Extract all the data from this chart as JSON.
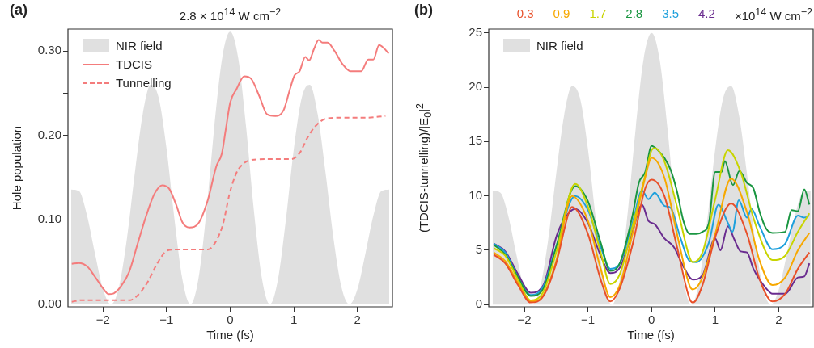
{
  "chart_data": [
    {
      "type": "line",
      "title": "2.8 × 10$^{14}$ W cm$^{−2}$",
      "xlabel": "Time (fs)",
      "ylabel": "Hole population",
      "annotations": [
        "(a)"
      ],
      "xlim": [
        -2.55,
        2.55
      ],
      "ylim": [
        -0.003,
        0.326
      ],
      "xticks": [
        -2,
        -1,
        0,
        1,
        2
      ],
      "yticks": [
        {
          "value": 0,
          "label": "0.00"
        },
        {
          "value": 0.05,
          "label": null
        },
        {
          "value": 0.1,
          "label": "0.10"
        },
        {
          "value": 0.15,
          "label": null
        },
        {
          "value": 0.2,
          "label": "0.20"
        },
        {
          "value": 0.25,
          "label": null
        },
        {
          "value": 0.3,
          "label": "0.30"
        }
      ],
      "grid": false,
      "legend": "top left",
      "marker": "none",
      "series": [
        {
          "name": "NIR field",
          "type": "area",
          "color": "#e0e0e0",
          "x": [
            -2.5,
            -2.375,
            -2.25,
            -2.125,
            -2,
            -1.875,
            -1.75,
            -1.625,
            -1.5,
            -1.375,
            -1.25,
            -1.125,
            -1,
            -0.875,
            -0.75,
            -0.625,
            -0.5,
            -0.375,
            -0.25,
            -0.125,
            0,
            0.125,
            0.25,
            0.375,
            0.5,
            0.625,
            0.75,
            0.875,
            1,
            1.125,
            1.25,
            1.375,
            1.5,
            1.625,
            1.75,
            1.875,
            2,
            2.125,
            2.25,
            2.375,
            2.5
          ],
          "values": [
            0.136,
            0.134,
            0.105,
            0.06,
            0.018,
            0,
            0.02,
            0.077,
            0.155,
            0.225,
            0.26,
            0.245,
            0.184,
            0.1,
            0.029,
            0,
            0.03,
            0.109,
            0.21,
            0.292,
            0.323,
            0.292,
            0.21,
            0.109,
            0.03,
            0,
            0.029,
            0.1,
            0.184,
            0.245,
            0.26,
            0.225,
            0.155,
            0.077,
            0.02,
            0,
            0.018,
            0.06,
            0.105,
            0.134,
            0.136
          ]
        },
        {
          "name": "TDCIS",
          "color": "#f47c7c",
          "line_style": "solid",
          "x": [
            -2.49,
            -2.38,
            -2.25,
            -2.12,
            -2,
            -1.91,
            -1.83,
            -1.72,
            -1.59,
            -1.45,
            -1.32,
            -1.19,
            -1.07,
            -0.96,
            -0.85,
            -0.75,
            -0.64,
            -0.49,
            -0.35,
            -0.22,
            -0.13,
            -0.07,
            0,
            0.1,
            0.22,
            0.33,
            0.46,
            0.58,
            0.71,
            0.84,
            0.94,
            1.01,
            1.09,
            1.18,
            1.24,
            1.32,
            1.39,
            1.45,
            1.53,
            1.64,
            1.77,
            1.89,
            2.06,
            2.17,
            2.25,
            2.34,
            2.42,
            2.49
          ],
          "values": [
            0.048,
            0.049,
            0.045,
            0.032,
            0.019,
            0.012,
            0.013,
            0.021,
            0.038,
            0.073,
            0.105,
            0.131,
            0.141,
            0.137,
            0.118,
            0.097,
            0.091,
            0.097,
            0.124,
            0.163,
            0.179,
            0.207,
            0.239,
            0.255,
            0.27,
            0.267,
            0.246,
            0.225,
            0.223,
            0.23,
            0.255,
            0.271,
            0.276,
            0.293,
            0.289,
            0.303,
            0.313,
            0.31,
            0.31,
            0.3,
            0.284,
            0.276,
            0.276,
            0.29,
            0.29,
            0.307,
            0.303,
            0.297
          ]
        },
        {
          "name": "Tunnelling",
          "color": "#f47c7c",
          "line_style": "dashed",
          "x": [
            -2.49,
            -2.33,
            -2.12,
            -1.83,
            -1.57,
            -1.45,
            -1.3,
            -1.15,
            -0.98,
            -0.81,
            -0.56,
            -0.35,
            -0.22,
            -0.11,
            -0.01,
            0.1,
            0.2,
            0.33,
            0.63,
            0.96,
            1.09,
            1.22,
            1.34,
            1.51,
            1.73,
            2.11,
            2.44
          ],
          "values": [
            0.003,
            0.005,
            0.005,
            0.005,
            0.005,
            0.011,
            0.026,
            0.048,
            0.064,
            0.065,
            0.065,
            0.065,
            0.075,
            0.096,
            0.131,
            0.156,
            0.166,
            0.171,
            0.172,
            0.172,
            0.179,
            0.198,
            0.211,
            0.22,
            0.221,
            0.221,
            0.223
          ]
        }
      ]
    },
    {
      "type": "line",
      "legend_title": "×10$^{14}$ W cm$^{−2}$",
      "xlabel": "Time (fs)",
      "ylabel": "(TDCIS-tunnelling)/|E$_{0}$|$^{2}$",
      "annotations": [
        "(b)"
      ],
      "xlim": [
        -2.56,
        2.54
      ],
      "ylim": [
        -0.2,
        25.35
      ],
      "xticks": [
        -2,
        -1,
        0,
        1,
        2
      ],
      "yticks": [
        0,
        5,
        10,
        15,
        20,
        25
      ],
      "grid": false,
      "legend": "top left",
      "marker": "none",
      "line_style": "solid",
      "series": [
        {
          "name": "NIR field",
          "type": "area",
          "color": "#e0e0e0",
          "x": [
            -2.5,
            -2.375,
            -2.25,
            -2.125,
            -2,
            -1.875,
            -1.75,
            -1.625,
            -1.5,
            -1.375,
            -1.25,
            -1.125,
            -1,
            -0.875,
            -0.75,
            -0.625,
            -0.5,
            -0.375,
            -0.25,
            -0.125,
            0,
            0.125,
            0.25,
            0.375,
            0.5,
            0.625,
            0.75,
            0.875,
            1,
            1.125,
            1.25,
            1.375,
            1.5,
            1.625,
            1.75,
            1.875,
            2,
            2.125,
            2.25,
            2.375,
            2.5
          ],
          "values": [
            10.5,
            10.3,
            8.1,
            4.6,
            1.4,
            0,
            1.6,
            6,
            12,
            17.4,
            20.1,
            19,
            14.3,
            7.8,
            2.2,
            0,
            2.3,
            8.5,
            16.2,
            22.6,
            25,
            22.6,
            16.2,
            8.5,
            2.3,
            0,
            2.2,
            7.8,
            14.3,
            19,
            20.1,
            17.4,
            12,
            6,
            1.6,
            0,
            1.4,
            4.6,
            8.1,
            10.3,
            10.5
          ]
        },
        {
          "name": "0.3",
          "color": "#e8502a",
          "x": [
            -2.48,
            -2.3,
            -2.1,
            -1.9,
            -1.7,
            -1.5,
            -1.3,
            -1.25,
            -1,
            -0.8,
            -0.65,
            -0.5,
            -0.3,
            -0.1,
            0,
            0.2,
            0.4,
            0.6,
            0.65,
            0.8,
            1,
            1.25,
            1.5,
            1.7,
            1.9,
            2.1,
            2.3,
            2.48
          ],
          "values": [
            4.6,
            3.8,
            1.8,
            0.2,
            0.8,
            3.8,
            8.5,
            9,
            6.5,
            2.3,
            0.3,
            1.5,
            5.5,
            10.7,
            11.5,
            10,
            5.3,
            0.5,
            0.2,
            1.8,
            6.2,
            9.3,
            6.5,
            2.3,
            0.3,
            1,
            3.3,
            4.8
          ]
        },
        {
          "name": "0.9",
          "color": "#f7a800",
          "x": [
            -2.48,
            -2.3,
            -2.1,
            -1.9,
            -1.7,
            -1.5,
            -1.25,
            -1,
            -0.8,
            -0.65,
            -0.5,
            -0.3,
            -0.1,
            0,
            0.2,
            0.4,
            0.6,
            0.65,
            0.8,
            1,
            1.25,
            1.5,
            1.7,
            1.9,
            2.1,
            2.3,
            2.48
          ],
          "values": [
            4.8,
            4,
            2,
            0.3,
            0.9,
            4,
            10,
            7.7,
            3.3,
            0.7,
            1.8,
            6.5,
            11.7,
            13.5,
            11.7,
            6.5,
            1.7,
            1.4,
            2.5,
            6.5,
            11.6,
            8.5,
            4,
            1.8,
            2.5,
            5,
            6.6
          ]
        },
        {
          "name": "1.7",
          "color": "#c8d400",
          "x": [
            -2.48,
            -2.3,
            -2.1,
            -1.9,
            -1.7,
            -1.5,
            -1.2,
            -1,
            -0.8,
            -0.65,
            -0.5,
            -0.3,
            -0.1,
            0,
            0.05,
            0.2,
            0.4,
            0.6,
            0.65,
            0.8,
            1,
            1.2,
            1.4,
            1.6,
            1.8,
            1.9,
            2.1,
            2.3,
            2.48
          ],
          "values": [
            5.2,
            4.5,
            2.3,
            0.4,
            1.2,
            4.8,
            11.1,
            9,
            4.8,
            1.9,
            2.8,
            7.2,
            11.9,
            14.2,
            14.4,
            13.2,
            9,
            4.3,
            3.9,
            4.8,
            9.7,
            14.2,
            12.2,
            8,
            4.8,
            4.1,
            4.5,
            6.7,
            8.4
          ]
        },
        {
          "name": "2.8",
          "color": "#1a9641",
          "x": [
            -2.48,
            -2.3,
            -2.1,
            -1.9,
            -1.7,
            -1.5,
            -1.2,
            -1,
            -0.8,
            -0.65,
            -0.5,
            -0.3,
            -0.2,
            -0.1,
            0,
            0.1,
            0.2,
            0.3,
            0.4,
            0.5,
            0.6,
            0.7,
            0.8,
            0.9,
            1,
            1.1,
            1.15,
            1.28,
            1.38,
            1.5,
            1.6,
            1.7,
            1.8,
            1.9,
            2.1,
            2.2,
            2.3,
            2.4,
            2.48
          ],
          "values": [
            5.5,
            4.6,
            2.5,
            0.8,
            1.5,
            5.3,
            10.9,
            9.5,
            5.7,
            3.1,
            3.8,
            8.2,
            11.2,
            12.2,
            14.6,
            14.2,
            13.5,
            12.4,
            10.4,
            7.7,
            6.5,
            6.5,
            6.7,
            7.5,
            12.2,
            12.2,
            13.2,
            11,
            12.3,
            11.2,
            10.7,
            8.5,
            7,
            6.6,
            6.7,
            8.7,
            8.6,
            10.6,
            9.2
          ]
        },
        {
          "name": "3.5",
          "color": "#1ea0dc",
          "x": [
            -2.48,
            -2.3,
            -2.1,
            -1.9,
            -1.7,
            -1.5,
            -1.2,
            -1,
            -0.8,
            -0.65,
            -0.5,
            -0.3,
            -0.15,
            -0.05,
            0.05,
            0.2,
            0.3,
            0.45,
            0.6,
            0.7,
            0.9,
            1.05,
            1.2,
            1.27,
            1.37,
            1.5,
            1.57,
            1.7,
            1.9,
            2.1,
            2.3,
            2.4,
            2.48
          ],
          "values": [
            5.6,
            4.8,
            2.5,
            0.9,
            1.7,
            5.3,
            10,
            8.7,
            5.3,
            3.3,
            3.8,
            7.5,
            10.5,
            9.7,
            10.3,
            9.1,
            8.9,
            6.2,
            4,
            3.9,
            5.7,
            9.2,
            7.5,
            6.7,
            9.6,
            8,
            8.8,
            7.2,
            5.1,
            5.6,
            8.2,
            8,
            8.2
          ]
        },
        {
          "name": "4.2",
          "color": "#6a2c8f",
          "x": [
            -2.48,
            -2.3,
            -2.1,
            -1.9,
            -1.7,
            -1.5,
            -1.4,
            -1.2,
            -1,
            -0.8,
            -0.65,
            -0.5,
            -0.3,
            -0.15,
            -0.05,
            0.05,
            0.2,
            0.35,
            0.5,
            0.65,
            0.8,
            1,
            1.08,
            1.2,
            1.3,
            1.4,
            1.5,
            1.6,
            1.8,
            1.9,
            2.1,
            2.3,
            2.4,
            2.48
          ],
          "values": [
            5.6,
            4.9,
            2.8,
            1.1,
            1.8,
            6.2,
            7.6,
            8.8,
            7.5,
            4.5,
            2.9,
            3.4,
            6.7,
            9.2,
            7.7,
            7.4,
            6.1,
            5.3,
            3.5,
            2.3,
            2.7,
            6.1,
            5,
            7.2,
            6,
            4.9,
            4.8,
            3.3,
            1.5,
            1,
            1,
            2.5,
            2.6,
            3.8
          ]
        }
      ]
    }
  ]
}
